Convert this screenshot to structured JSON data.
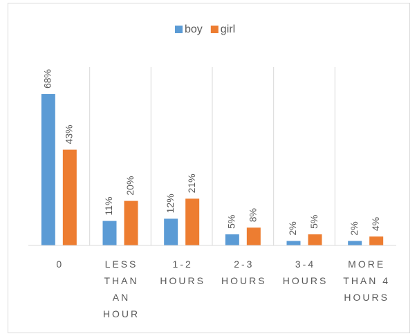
{
  "chart_data": {
    "type": "bar",
    "categories": [
      "0",
      "LESS THAN AN HOUR",
      "1-2 HOURS",
      "2-3 HOURS",
      "3-4 HOURS",
      "MORE THAN 4 HOURS"
    ],
    "series": [
      {
        "name": "boy",
        "color": "#5b9bd5",
        "values": [
          68,
          11,
          12,
          5,
          2,
          2
        ],
        "value_labels": [
          "68%",
          "11%",
          "12%",
          "5%",
          "2%",
          "2%"
        ]
      },
      {
        "name": "girl",
        "color": "#ed7d31",
        "values": [
          43,
          20,
          21,
          8,
          5,
          4
        ],
        "value_labels": [
          "43%",
          "20%",
          "21%",
          "8%",
          "5%",
          "4%"
        ]
      }
    ],
    "legend": "top"
  }
}
